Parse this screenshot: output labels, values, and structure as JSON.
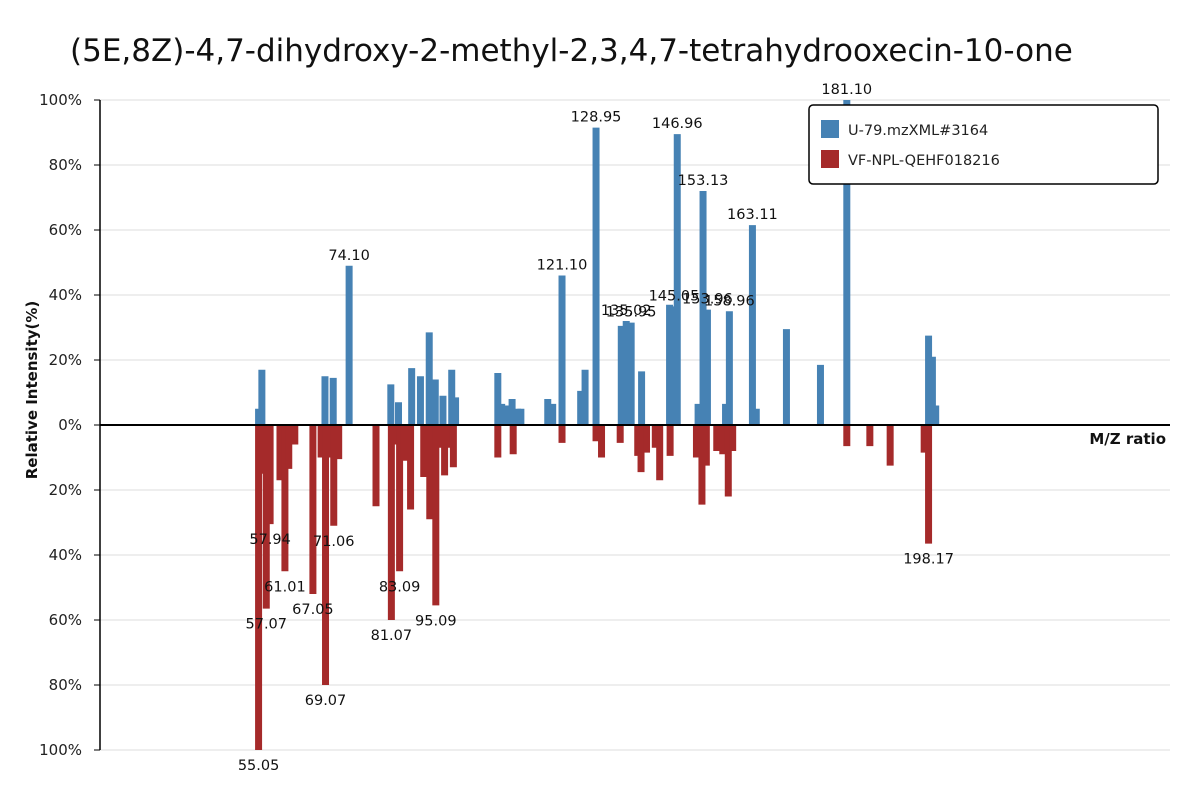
{
  "title": "(5E,8Z)-4,7-dihydroxy-2-methyl-2,3,4,7-tetrahydrooxecin-10-one",
  "chart_data": {
    "type": "bar",
    "title": "(5E,8Z)-4,7-dihydroxy-2-methyl-2,3,4,7-tetrahydrooxecin-10-one",
    "xlabel": "M/Z ratio",
    "ylabel": "Relative Intensity(%)",
    "xlim": [
      26.0,
      221.0
    ],
    "ylim": [
      -100,
      100
    ],
    "y_tick_labels": [
      "100%",
      "80%",
      "60%",
      "40%",
      "20%",
      "0%",
      "20%",
      "40%",
      "60%",
      "80%",
      "100%"
    ],
    "grid": true,
    "legend": {
      "position": "top-right"
    },
    "series": [
      {
        "name": "U-79.mzXML#3164",
        "color": "#4682b4",
        "direction": "up",
        "points": [
          {
            "mz": 54.9,
            "y": 5
          },
          {
            "mz": 55.5,
            "y": 17
          },
          {
            "mz": 67.0,
            "y": 15
          },
          {
            "mz": 68.5,
            "y": 14.5
          },
          {
            "mz": 71.4,
            "y": 49,
            "label": "74.10"
          },
          {
            "mz": 79.0,
            "y": 12.5
          },
          {
            "mz": 80.4,
            "y": 7
          },
          {
            "mz": 82.8,
            "y": 17.5
          },
          {
            "mz": 84.4,
            "y": 15
          },
          {
            "mz": 86.0,
            "y": 28.5
          },
          {
            "mz": 87.1,
            "y": 14
          },
          {
            "mz": 88.5,
            "y": 9
          },
          {
            "mz": 90.1,
            "y": 17
          },
          {
            "mz": 90.8,
            "y": 8.5
          },
          {
            "mz": 98.5,
            "y": 16
          },
          {
            "mz": 99.2,
            "y": 6.5
          },
          {
            "mz": 100.1,
            "y": 6
          },
          {
            "mz": 101.1,
            "y": 8
          },
          {
            "mz": 102.1,
            "y": 5
          },
          {
            "mz": 102.7,
            "y": 5
          },
          {
            "mz": 107.6,
            "y": 8
          },
          {
            "mz": 108.5,
            "y": 6.5
          },
          {
            "mz": 110.2,
            "y": 46,
            "label": "121.10"
          },
          {
            "mz": 113.6,
            "y": 10.5
          },
          {
            "mz": 114.4,
            "y": 17
          },
          {
            "mz": 116.4,
            "y": 91.5,
            "label": "128.95"
          },
          {
            "mz": 121.0,
            "y": 30.5
          },
          {
            "mz": 121.9,
            "y": 32,
            "label": "135.02"
          },
          {
            "mz": 122.8,
            "y": 31.5,
            "label": "135.95"
          },
          {
            "mz": 124.7,
            "y": 16.5
          },
          {
            "mz": 129.8,
            "y": 37
          },
          {
            "mz": 130.6,
            "y": 36.5,
            "label": "145.05"
          },
          {
            "mz": 131.2,
            "y": 89.5,
            "label": "146.96"
          },
          {
            "mz": 135.0,
            "y": 6.5
          },
          {
            "mz": 135.9,
            "y": 72,
            "label": "153.13"
          },
          {
            "mz": 136.7,
            "y": 35.5,
            "label": "153.96"
          },
          {
            "mz": 140.0,
            "y": 6.5
          },
          {
            "mz": 140.7,
            "y": 35,
            "label": "158.96"
          },
          {
            "mz": 144.9,
            "y": 61.5,
            "label": "163.11"
          },
          {
            "mz": 145.6,
            "y": 5
          },
          {
            "mz": 151.1,
            "y": 29.5
          },
          {
            "mz": 157.3,
            "y": 18.5
          },
          {
            "mz": 162.1,
            "y": 100,
            "label": "181.10"
          },
          {
            "mz": 177.0,
            "y": 27.5
          },
          {
            "mz": 177.7,
            "y": 21
          },
          {
            "mz": 178.3,
            "y": 6
          }
        ]
      },
      {
        "name": "VF-NPL-QEHF018216",
        "color": "#a52a2a",
        "direction": "down",
        "points": [
          {
            "mz": 54.9,
            "y": 100,
            "label": "55.05"
          },
          {
            "mz": 55.5,
            "y": 15
          },
          {
            "mz": 56.3,
            "y": 56.5,
            "label": "57.07"
          },
          {
            "mz": 57.0,
            "y": 30.5,
            "label": "57.94"
          },
          {
            "mz": 58.8,
            "y": 17
          },
          {
            "mz": 59.7,
            "y": 45,
            "label": "61.01"
          },
          {
            "mz": 60.4,
            "y": 13.5
          },
          {
            "mz": 61.5,
            "y": 6
          },
          {
            "mz": 64.8,
            "y": 52,
            "label": "67.05"
          },
          {
            "mz": 66.3,
            "y": 10
          },
          {
            "mz": 67.1,
            "y": 80,
            "label": "69.07"
          },
          {
            "mz": 68.0,
            "y": 10
          },
          {
            "mz": 68.6,
            "y": 31,
            "label": "71.06"
          },
          {
            "mz": 69.5,
            "y": 10.5
          },
          {
            "mz": 76.3,
            "y": 25
          },
          {
            "mz": 79.1,
            "y": 60,
            "label": "81.07"
          },
          {
            "mz": 79.7,
            "y": 6
          },
          {
            "mz": 80.6,
            "y": 45,
            "label": "83.09"
          },
          {
            "mz": 81.4,
            "y": 11
          },
          {
            "mz": 82.6,
            "y": 26
          },
          {
            "mz": 85.0,
            "y": 16
          },
          {
            "mz": 86.1,
            "y": 29
          },
          {
            "mz": 87.2,
            "y": 55.5,
            "label": "95.09"
          },
          {
            "mz": 87.9,
            "y": 7
          },
          {
            "mz": 88.8,
            "y": 15.5
          },
          {
            "mz": 89.4,
            "y": 7
          },
          {
            "mz": 90.4,
            "y": 13
          },
          {
            "mz": 98.5,
            "y": 10
          },
          {
            "mz": 101.3,
            "y": 9
          },
          {
            "mz": 110.2,
            "y": 5.5
          },
          {
            "mz": 116.4,
            "y": 5
          },
          {
            "mz": 117.4,
            "y": 10
          },
          {
            "mz": 120.8,
            "y": 5.5
          },
          {
            "mz": 124.0,
            "y": 9.5
          },
          {
            "mz": 124.6,
            "y": 14.5
          },
          {
            "mz": 125.6,
            "y": 8.5
          },
          {
            "mz": 127.2,
            "y": 7
          },
          {
            "mz": 128.0,
            "y": 17
          },
          {
            "mz": 129.9,
            "y": 9.5
          },
          {
            "mz": 134.7,
            "y": 10
          },
          {
            "mz": 135.7,
            "y": 24.5
          },
          {
            "mz": 136.5,
            "y": 12.5
          },
          {
            "mz": 138.4,
            "y": 8
          },
          {
            "mz": 139.5,
            "y": 9
          },
          {
            "mz": 140.5,
            "y": 22
          },
          {
            "mz": 141.3,
            "y": 8
          },
          {
            "mz": 162.1,
            "y": 6.5
          },
          {
            "mz": 166.3,
            "y": 6.5
          },
          {
            "mz": 170.0,
            "y": 12.5
          },
          {
            "mz": 176.2,
            "y": 8.5
          },
          {
            "mz": 177.0,
            "y": 36.5,
            "label": "198.17"
          }
        ]
      }
    ]
  }
}
